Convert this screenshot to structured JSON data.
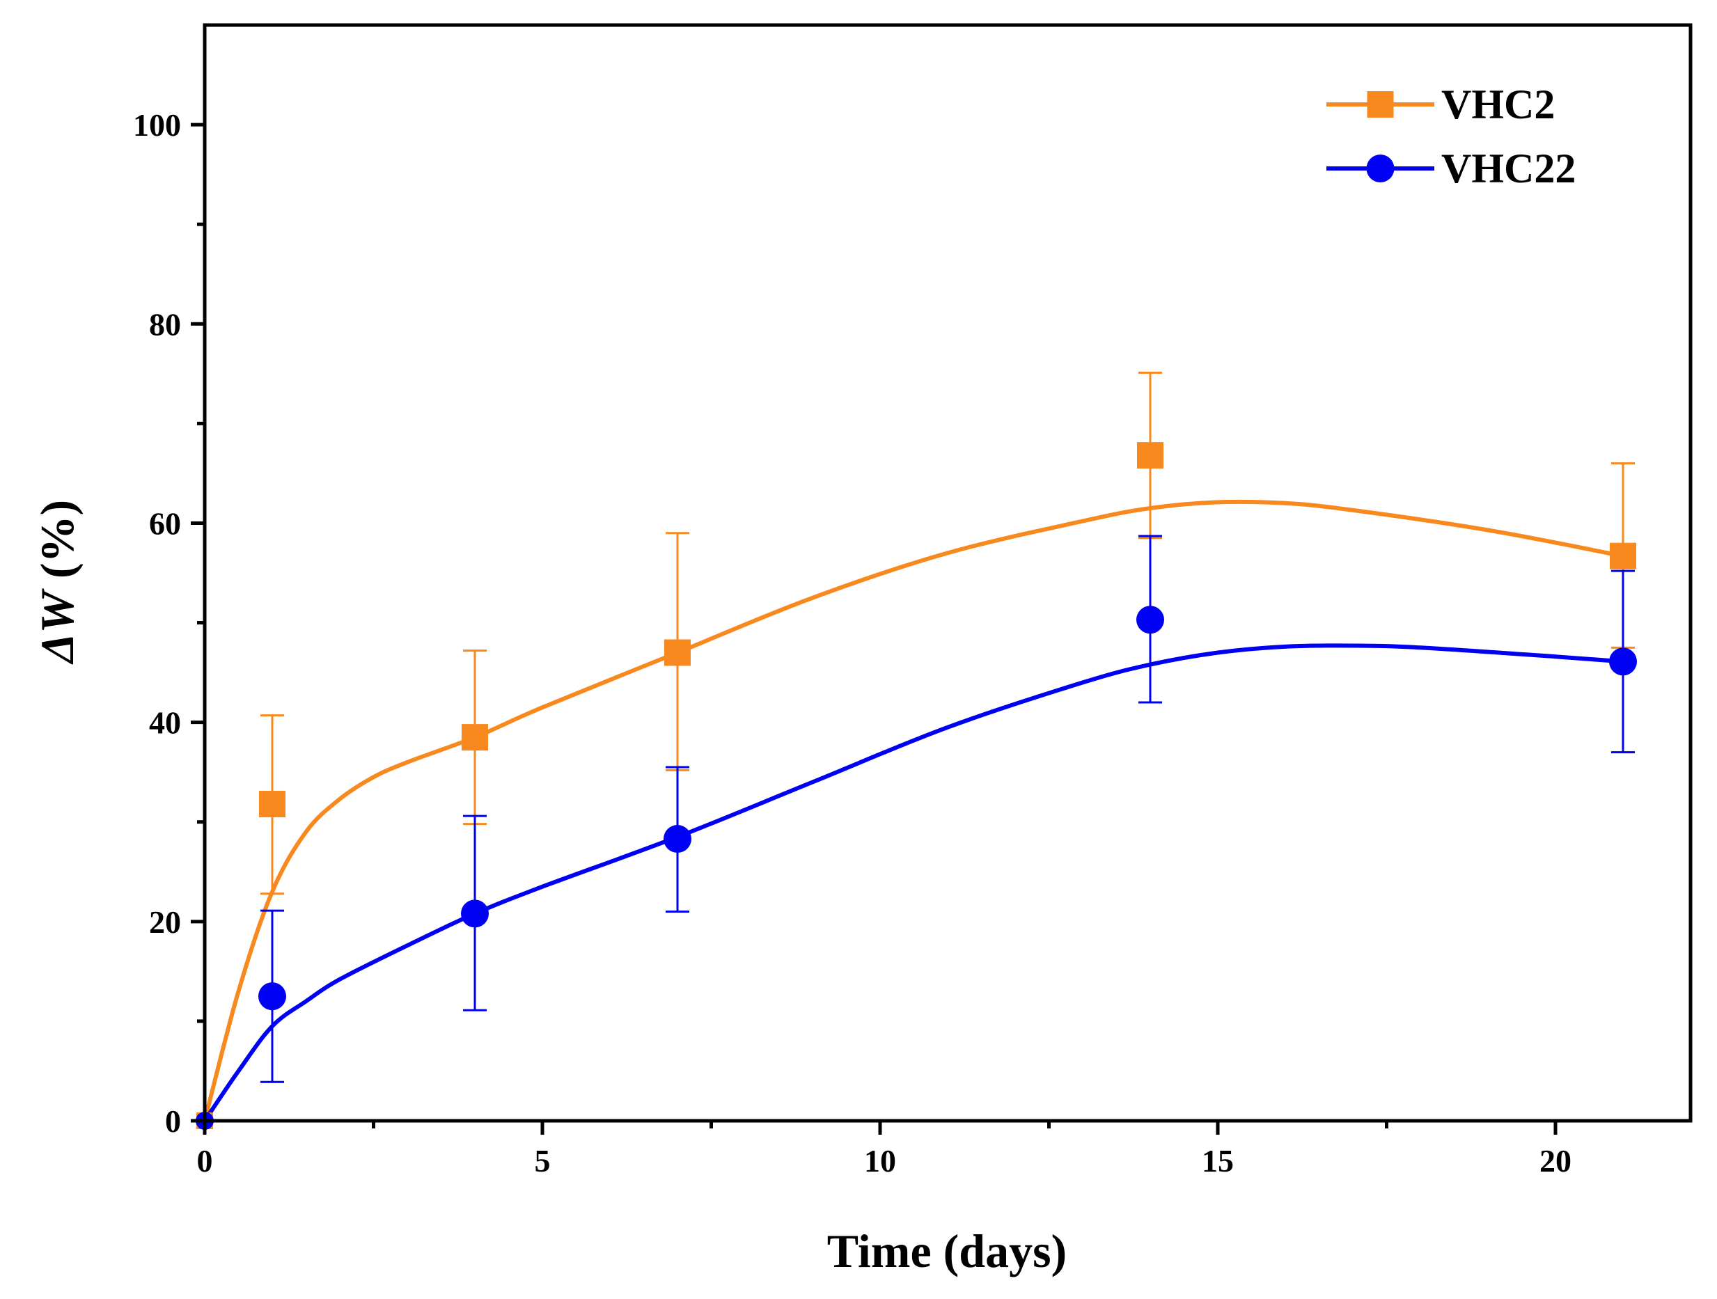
{
  "chart_data": {
    "type": "scatter",
    "title": "",
    "xlabel": "Time (days)",
    "ylabel_symbol": "ΔW",
    "ylabel_unit": "(%)",
    "xlim": [
      0,
      22
    ],
    "ylim": [
      0,
      110
    ],
    "xticks": [
      0,
      5,
      10,
      15,
      20
    ],
    "xticks_minor": [
      2.5,
      7.5,
      12.5,
      17.5
    ],
    "yticks": [
      0,
      20,
      40,
      60,
      80,
      100
    ],
    "yticks_minor": [
      10,
      30,
      50,
      70,
      90
    ],
    "legend_position": "top-right",
    "series": [
      {
        "name": "VHC2",
        "color": "#F7891F",
        "marker": "square",
        "x": [
          0,
          1,
          4,
          7,
          14,
          21
        ],
        "y": [
          0,
          31.8,
          38.5,
          47,
          66.8,
          56.7
        ],
        "err_upper": [
          0,
          40.7,
          47.2,
          59,
          75.1,
          66
        ],
        "err_lower": [
          0,
          22.8,
          29.8,
          35.2,
          58.5,
          47.5
        ],
        "fit": [
          [
            0,
            0
          ],
          [
            0.5,
            13
          ],
          [
            1,
            23
          ],
          [
            1.5,
            29
          ],
          [
            2,
            32.3
          ],
          [
            2.5,
            34.5
          ],
          [
            3,
            36
          ],
          [
            4,
            38.5
          ],
          [
            5,
            41.5
          ],
          [
            7,
            47
          ],
          [
            9,
            52.5
          ],
          [
            11,
            57
          ],
          [
            13,
            60.2
          ],
          [
            14,
            61.5
          ],
          [
            15,
            62.1
          ],
          [
            16,
            62
          ],
          [
            17,
            61.3
          ],
          [
            19,
            59.3
          ],
          [
            21,
            56.7
          ]
        ]
      },
      {
        "name": "VHC22",
        "color": "#0000F5",
        "marker": "circle",
        "x": [
          0,
          1,
          4,
          7,
          14,
          21
        ],
        "y": [
          0,
          12.5,
          20.8,
          28.3,
          50.3,
          46.1
        ],
        "err_upper": [
          0,
          21.1,
          30.6,
          35.5,
          58.7,
          55.2
        ],
        "err_lower": [
          0,
          3.9,
          11.1,
          21,
          42,
          37
        ],
        "fit": [
          [
            0,
            0
          ],
          [
            0.5,
            5
          ],
          [
            1,
            9.5
          ],
          [
            1.5,
            12
          ],
          [
            2,
            14.2
          ],
          [
            3,
            17.6
          ],
          [
            4,
            20.8
          ],
          [
            5,
            23.5
          ],
          [
            7,
            28.5
          ],
          [
            9,
            34
          ],
          [
            11,
            39.5
          ],
          [
            13,
            44
          ],
          [
            14,
            45.8
          ],
          [
            15,
            47
          ],
          [
            16,
            47.6
          ],
          [
            17,
            47.7
          ],
          [
            18,
            47.5
          ],
          [
            20,
            46.6
          ],
          [
            21,
            46.1
          ]
        ]
      }
    ]
  }
}
